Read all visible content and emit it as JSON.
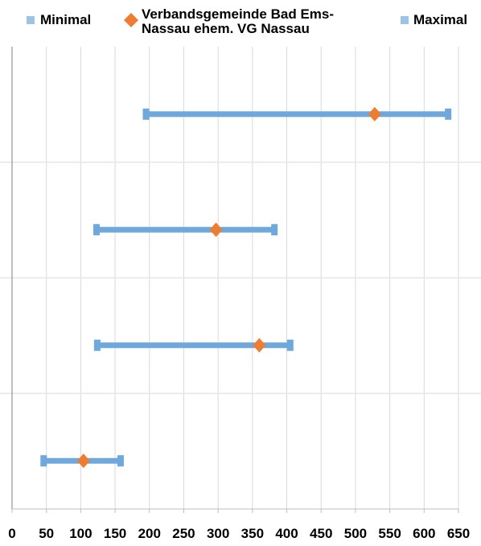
{
  "chart_data": {
    "type": "range-dot",
    "xlim": [
      0,
      650
    ],
    "xticks": [
      0,
      50,
      100,
      150,
      200,
      250,
      300,
      350,
      400,
      450,
      500,
      550,
      600,
      650
    ],
    "grid": true,
    "legend_position": "top",
    "legend": [
      {
        "label": "Minimal",
        "marker": "square",
        "color": "#9DC3E6"
      },
      {
        "label": "Verbandsgemeinde Bad Ems-\nNassau ehem. VG Nassau",
        "marker": "diamond",
        "color": "#ED7D31"
      },
      {
        "label": "Maximal",
        "marker": "square",
        "color": "#9DC3E6"
      }
    ],
    "colors": {
      "range": "#6FA8DC",
      "dot": "#ED7D31",
      "grid": "#D9D9D9",
      "axis": "#808080"
    },
    "series": [
      {
        "name": "Minimal",
        "values": [
          195,
          123,
          124,
          46
        ]
      },
      {
        "name": "Verbandsgemeinde Bad Ems-Nassau ehem. VG Nassau",
        "values": [
          528,
          297,
          360,
          104
        ]
      },
      {
        "name": "Maximal",
        "values": [
          635,
          382,
          405,
          158
        ]
      }
    ]
  }
}
